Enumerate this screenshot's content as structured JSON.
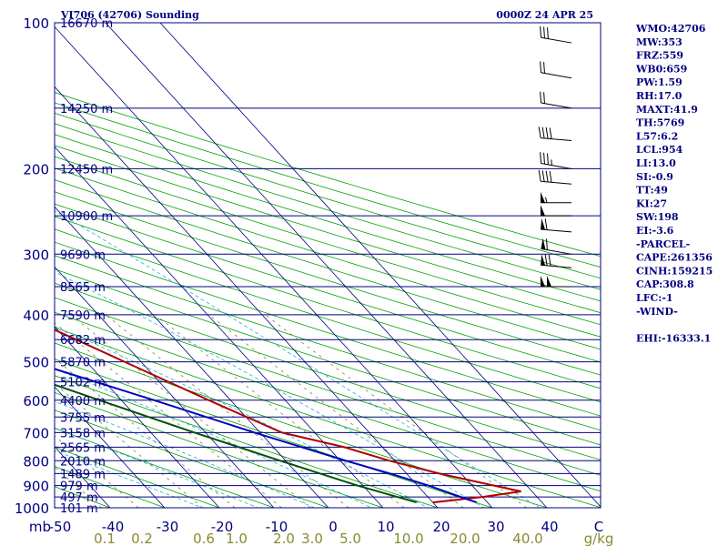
{
  "header": {
    "station": "VI706 (42706) Sounding",
    "time": "0000Z 24 APR 25"
  },
  "stats": [
    "WMO:42706",
    "MW:353",
    "FRZ:559",
    "WB0:659",
    "PW:1.59",
    "RH:17.0",
    "MAXT:41.9",
    "TH:5769",
    "L57:6.2",
    "LCL:954",
    "LI:13.0",
    "SI:-0.9",
    "TT:49",
    "KI:27",
    "SW:198",
    "EI:-3.6",
    "-PARCEL-",
    "CAPE:261356",
    "CINH:159215",
    "CAP:308.8",
    "LFC:-1",
    "-WIND-",
    "",
    "EHI:-16333.1"
  ],
  "colors": {
    "isobar": "#000080",
    "isotherm": "#000080",
    "dry_adiabat": "#00a000",
    "moist_adiabat": "#20b0e0",
    "mixing_ratio": "#808040",
    "temperature": "#b00000",
    "dewpoint": "#005000",
    "parcel": "#0000c0",
    "wind_barb": "#000000"
  },
  "chart_data": {
    "type": "line",
    "title": "VI706 (42706) Sounding",
    "xlabel": "",
    "ylabel": "mb",
    "y_scale": "log",
    "ylim": [
      1000,
      100
    ],
    "xlim": [
      -50,
      50
    ],
    "pressure_ticks": [
      100,
      200,
      300,
      400,
      500,
      600,
      700,
      800,
      900,
      1000
    ],
    "isobar_levels": [
      100,
      150,
      200,
      250,
      300,
      350,
      400,
      450,
      500,
      550,
      600,
      650,
      700,
      750,
      800,
      850,
      900,
      950,
      1000
    ],
    "height_labels": [
      {
        "p": 100,
        "label": "16670 m"
      },
      {
        "p": 150,
        "label": "14250 m"
      },
      {
        "p": 200,
        "label": "12450 m"
      },
      {
        "p": 250,
        "label": "10900 m"
      },
      {
        "p": 300,
        "label": "9690 m"
      },
      {
        "p": 350,
        "label": "8565 m"
      },
      {
        "p": 400,
        "label": "7590 m"
      },
      {
        "p": 450,
        "label": "6682 m"
      },
      {
        "p": 500,
        "label": "5870 m"
      },
      {
        "p": 550,
        "label": "5102 m"
      },
      {
        "p": 600,
        "label": "4400 m"
      },
      {
        "p": 650,
        "label": "3755 m"
      },
      {
        "p": 700,
        "label": "3158 m"
      },
      {
        "p": 750,
        "label": "2565 m"
      },
      {
        "p": 800,
        "label": "2010 m"
      },
      {
        "p": 850,
        "label": "1489 m"
      },
      {
        "p": 900,
        "label": "979 m"
      },
      {
        "p": 950,
        "label": "497 m"
      },
      {
        "p": 1000,
        "label": "101 m"
      }
    ],
    "temp_ticks": [
      "mb",
      "-50",
      "-40",
      "-30",
      "-20",
      "-10",
      "0",
      "10",
      "20",
      "30",
      "40",
      "C"
    ],
    "mixing_ratio_ticks": [
      "0.1",
      "0.2",
      "0.6",
      "1.0",
      "2.0",
      "3.0",
      "5.0",
      "10.0",
      "20.0",
      "40.0",
      "g/kg"
    ],
    "series": [
      {
        "name": "Temperature",
        "points": [
          [
            975,
            20
          ],
          [
            950,
            30
          ],
          [
            925,
            38
          ],
          [
            900,
            34
          ],
          [
            850,
            26
          ],
          [
            800,
            19
          ],
          [
            750,
            13
          ],
          [
            700,
            4
          ],
          [
            600,
            -4
          ],
          [
            500,
            -13
          ],
          [
            400,
            -24
          ],
          [
            350,
            -33
          ],
          [
            300,
            -42
          ],
          [
            250,
            -52
          ],
          [
            200,
            -62
          ],
          [
            150,
            -71
          ],
          [
            100,
            -64
          ]
        ]
      },
      {
        "name": "Dewpoint",
        "points": [
          [
            975,
            17
          ],
          [
            900,
            9
          ],
          [
            800,
            -1
          ],
          [
            700,
            -12
          ],
          [
            600,
            -24
          ],
          [
            500,
            -38
          ],
          [
            450,
            -35
          ],
          [
            400,
            -24
          ],
          [
            300,
            -50
          ],
          [
            250,
            -68
          ],
          [
            200,
            -78
          ],
          [
            150,
            -86
          ],
          [
            100,
            -91
          ]
        ]
      },
      {
        "name": "Parcel",
        "points": [
          [
            975,
            28
          ],
          [
            950,
            26
          ],
          [
            900,
            22
          ],
          [
            850,
            17
          ],
          [
            800,
            11
          ],
          [
            700,
            -1
          ],
          [
            600,
            -14
          ],
          [
            500,
            -30
          ],
          [
            400,
            -48
          ],
          [
            300,
            -65
          ],
          [
            250,
            -74
          ],
          [
            200,
            -84
          ],
          [
            150,
            -94
          ],
          [
            100,
            -110
          ]
        ]
      }
    ],
    "wind_barbs": [
      {
        "p": 350,
        "dir": 270,
        "speed": 100
      },
      {
        "p": 320,
        "dir": 275,
        "speed": 70
      },
      {
        "p": 300,
        "dir": 280,
        "speed": 60
      },
      {
        "p": 270,
        "dir": 275,
        "speed": 60
      },
      {
        "p": 250,
        "dir": 270,
        "speed": 50
      },
      {
        "p": 235,
        "dir": 270,
        "speed": 55
      },
      {
        "p": 215,
        "dir": 275,
        "speed": 40
      },
      {
        "p": 200,
        "dir": 280,
        "speed": 35
      },
      {
        "p": 175,
        "dir": 275,
        "speed": 40
      },
      {
        "p": 150,
        "dir": 280,
        "speed": 20
      },
      {
        "p": 130,
        "dir": 280,
        "speed": 20
      },
      {
        "p": 110,
        "dir": 280,
        "speed": 30
      }
    ]
  }
}
